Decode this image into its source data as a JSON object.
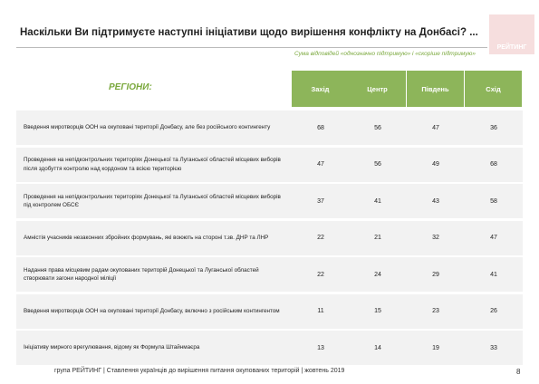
{
  "header": {
    "title": "Наскільки Ви підтримуєте наступні ініціативи щодо вирішення конфлікту на Донбасі? ...",
    "subtitle": "Сума відповідей «однозначно підтримую» і «скоріше підтримую»",
    "logo": "РЕЙТИНГ"
  },
  "table": {
    "corner": "РЕГІОНИ:",
    "columns": [
      "Захід",
      "Центр",
      "Південь",
      "Схід"
    ],
    "rows": [
      {
        "label": "Введення миротворців ООН на окуповані території Донбасу, але без російського контингенту",
        "values": [
          68,
          56,
          47,
          36
        ]
      },
      {
        "label": "Проведення на непідконтрольних територіях Донецької та Луганської областей місцевих виборів після здобуття контролю над кордоном та всією територією",
        "values": [
          47,
          56,
          49,
          68
        ]
      },
      {
        "label": "Проведення на непідконтрольних територіях Донецької та Луганської областей місцевих виборів під контролем ОБСЄ",
        "values": [
          37,
          41,
          43,
          58
        ]
      },
      {
        "label": "Амністія учасників незаконних збройних формувань, які воюють на стороні т.зв. ДНР та ЛНР",
        "values": [
          22,
          21,
          32,
          47
        ]
      },
      {
        "label": "Надання права місцевим радам окупованих територій Донецької та Луганської областей створювати загони народної міліції",
        "values": [
          22,
          24,
          29,
          41
        ]
      },
      {
        "label": "Введення миротворців ООН на окуповані території Донбасу, включно з російським контингентом",
        "values": [
          11,
          15,
          23,
          26
        ]
      },
      {
        "label": "Ініціативу мирного врегулювання, відому як Формула Штайнмаєра",
        "values": [
          13,
          14,
          19,
          33
        ]
      }
    ]
  },
  "footer": {
    "text": "група РЕЙТИНГ | Ставлення українців до вирішення питання окупованих територій  | жовтень 2019",
    "page": "8"
  }
}
